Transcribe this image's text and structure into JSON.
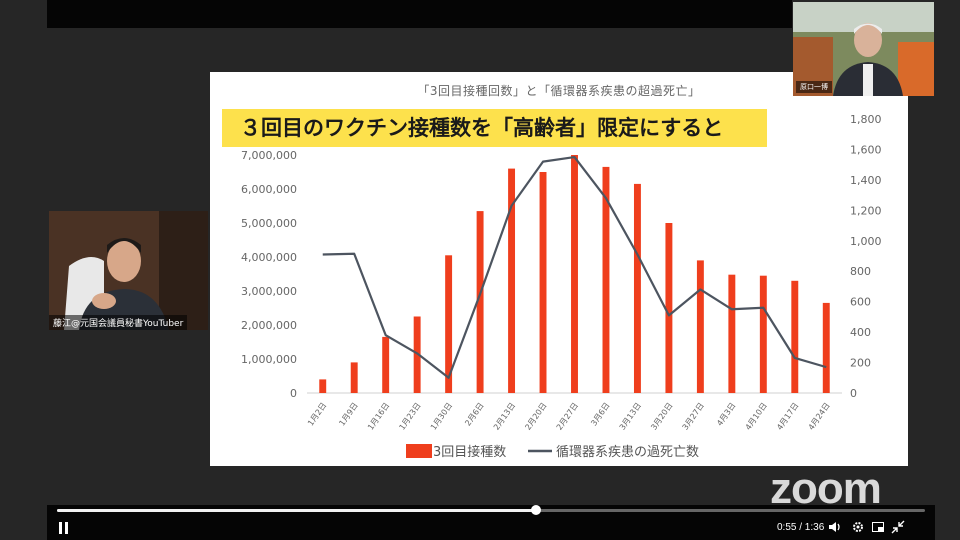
{
  "slide": {
    "title": "「3回目接種回数」と「循環器系疾患の超過死亡」",
    "headline": "３回目のワクチン接種数を「高齢者」限定にすると"
  },
  "chart_data": {
    "type": "bar",
    "categories": [
      "1月2日",
      "1月9日",
      "1月16日",
      "1月23日",
      "1月30日",
      "2月6日",
      "2月13日",
      "2月20日",
      "2月27日",
      "3月6日",
      "3月13日",
      "3月20日",
      "3月27日",
      "4月3日",
      "4月10日",
      "4月17日",
      "4月24日"
    ],
    "series": [
      {
        "name": "3回目接種数",
        "type": "bar",
        "axis": "left",
        "color": "#ef3e1d",
        "values": [
          400000,
          900000,
          1650000,
          2250000,
          4050000,
          5350000,
          6600000,
          6500000,
          7000000,
          6650000,
          6150000,
          5000000,
          3900000,
          3480000,
          3450000,
          3300000,
          2650000
        ]
      },
      {
        "name": "循環器系疾患の過死亡数",
        "type": "line",
        "axis": "right",
        "color": "#4d5560",
        "values": [
          910,
          915,
          380,
          260,
          100,
          650,
          1230,
          1520,
          1550,
          1280,
          910,
          510,
          680,
          550,
          560,
          230,
          170
        ]
      }
    ],
    "ylim_left": [
      0,
      7000000
    ],
    "yticks_left": [
      "0",
      "1,000,000",
      "2,000,000",
      "3,000,000",
      "4,000,000",
      "5,000,000",
      "6,000,000",
      "7,000,000"
    ],
    "ylim_right": [
      0,
      1800
    ],
    "yticks_right": [
      "0",
      "200",
      "400",
      "600",
      "800",
      "1,000",
      "1,200",
      "1,400",
      "1,600",
      "1,800"
    ],
    "legend": [
      "3回目接種数",
      "循環器系疾患の過死亡数"
    ],
    "legend_position": "bottom",
    "grid": false
  },
  "participants": {
    "left_name": "藤江@元国会議員秘書YouTuber",
    "right_name": "原口一博"
  },
  "branding": {
    "logo_text": "zoom"
  },
  "player": {
    "time": "0:55 / 1:36",
    "progress_fraction": 0.5521
  }
}
